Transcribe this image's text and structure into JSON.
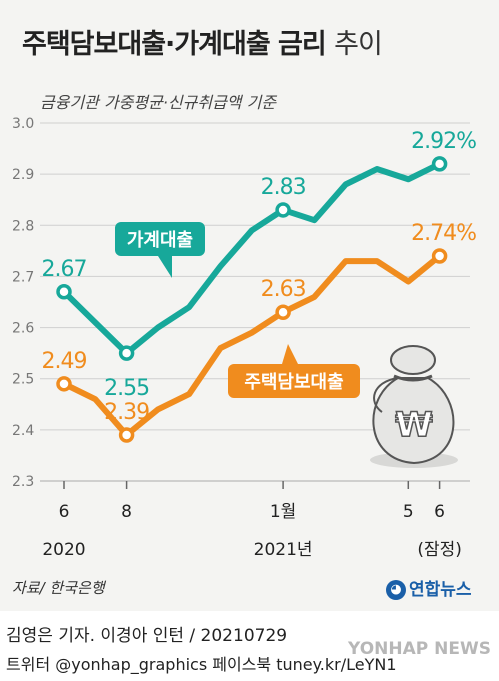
{
  "title_main": "주택담보대출·가계대출 금리",
  "title_suffix": "추이",
  "subtitle": "금융기관 가중평균·신규취급액 기준",
  "source": "자료/ 한국은행",
  "logo": "연합뉴스",
  "credit": "김영은 기자. 이경아 인턴 / 20210729",
  "social": "트위터 @yonhap_graphics  페이스북 tuney.kr/LeYN1",
  "watermark": "YONHAP NEWS",
  "colors": {
    "household": "#17a89a",
    "mortgage": "#f08c1e",
    "grid": "#cfcfcf"
  },
  "icon": "money-bag-won-icon",
  "chart_data": {
    "type": "line",
    "ylim": [
      2.3,
      3.0
    ],
    "yticks": [
      "2.3",
      "2.4",
      "2.5",
      "2.6",
      "2.7",
      "2.8",
      "2.9",
      "3.0"
    ],
    "x_labels": [
      {
        "i": 0,
        "label": "6"
      },
      {
        "i": 2,
        "label": "8"
      },
      {
        "i": 7,
        "label": "1월"
      },
      {
        "i": 11,
        "label": "5"
      },
      {
        "i": 12,
        "label": "6"
      }
    ],
    "year_labels": [
      {
        "i": 0,
        "label": "2020"
      },
      {
        "i": 7,
        "label": "2021년"
      },
      {
        "i": 12,
        "label": "(잠정)"
      }
    ],
    "series": [
      {
        "name": "가계대출",
        "values": [
          2.67,
          2.61,
          2.55,
          2.6,
          2.64,
          2.72,
          2.79,
          2.83,
          2.81,
          2.88,
          2.91,
          2.89,
          2.92
        ],
        "labels": [
          {
            "i": 0,
            "text": "2.67"
          },
          {
            "i": 2,
            "text": "2.55"
          },
          {
            "i": 7,
            "text": "2.83"
          },
          {
            "i": 12,
            "text": "2.92%"
          }
        ]
      },
      {
        "name": "주택담보대출",
        "values": [
          2.49,
          2.46,
          2.39,
          2.44,
          2.47,
          2.56,
          2.59,
          2.63,
          2.66,
          2.73,
          2.73,
          2.69,
          2.74
        ],
        "labels": [
          {
            "i": 0,
            "text": "2.49"
          },
          {
            "i": 2,
            "text": "2.39"
          },
          {
            "i": 7,
            "text": "2.63"
          },
          {
            "i": 12,
            "text": "2.74%"
          }
        ]
      }
    ]
  }
}
